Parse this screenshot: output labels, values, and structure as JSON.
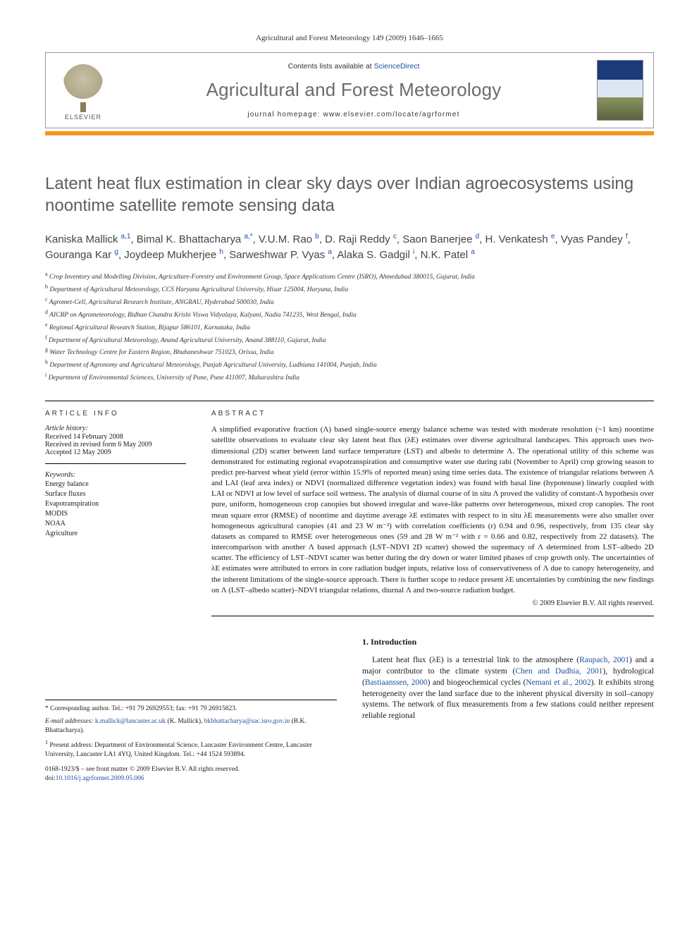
{
  "running_head": "Agricultural and Forest Meteorology 149 (2009) 1646–1665",
  "masthead": {
    "contents_prefix": "Contents lists available at ",
    "contents_link": "ScienceDirect",
    "journal": "Agricultural and Forest Meteorology",
    "homepage_prefix": "journal homepage: ",
    "homepage_url": "www.elsevier.com/locate/agrformet",
    "publisher": "ELSEVIER"
  },
  "title": "Latent heat flux estimation in clear sky days over Indian agroecosystems using noontime satellite remote sensing data",
  "authors_html": "Kaniska Mallick <sup>a,1</sup>, Bimal K. Bhattacharya <sup>a,*</sup>, V.U.M. Rao <sup>b</sup>, D. Raji Reddy <sup>c</sup>, Saon Banerjee <sup>d</sup>, H. Venkatesh <sup>e</sup>, Vyas Pandey <sup>f</sup>, Gouranga Kar <sup>g</sup>, Joydeep Mukherjee <sup>h</sup>, Sarweshwar P. Vyas <sup>a</sup>, Alaka S. Gadgil <sup>i</sup>, N.K. Patel <sup>a</sup>",
  "affiliations": [
    {
      "sup": "a",
      "text": "Crop Inventory and Modelling Division, Agriculture-Forestry and Environment Group, Space Applications Centre (ISRO), Ahmedabad 380015, Gujarat, India"
    },
    {
      "sup": "b",
      "text": "Department of Agricultural Meteorology, CCS Haryana Agricultural University, Hisar 125004, Haryana, India"
    },
    {
      "sup": "c",
      "text": "Agromet-Cell, Agricultural Research Institute, ANGRAU, Hyderabad 500030, India"
    },
    {
      "sup": "d",
      "text": "AICRP on Agrometeorology, Bidhan Chandra Krishi Viswa Vidyalaya, Kalyani, Nadia 741235, West Bengal, India"
    },
    {
      "sup": "e",
      "text": "Regional Agricultural Research Station, Bijapur 586101, Karnataka, India"
    },
    {
      "sup": "f",
      "text": "Department of Agricultural Meteorology, Anand Agricultural University, Anand 388110, Gujarat, India"
    },
    {
      "sup": "g",
      "text": "Water Technology Centre for Eastern Region, Bhubaneshwar 751023, Orissa, India"
    },
    {
      "sup": "h",
      "text": "Department of Agronomy and Agricultural Meteorology, Punjab Agricultural University, Ludhiana 141004, Punjab, India"
    },
    {
      "sup": "i",
      "text": "Department of Environmental Sciences, University of Pune, Pune 411007, Maharashtra India"
    }
  ],
  "article_info_head": "ARTICLE INFO",
  "abstract_head": "ABSTRACT",
  "history": {
    "label": "Article history:",
    "received": "Received 14 February 2008",
    "revised": "Received in revised form 6 May 2009",
    "accepted": "Accepted 12 May 2009"
  },
  "keywords": {
    "label": "Keywords:",
    "items": [
      "Energy balance",
      "Surface fluxes",
      "Evapotranspiration",
      "MODIS",
      "NOAA",
      "Agriculture"
    ]
  },
  "abstract": "A simplified evaporative fraction (Λ) based single-source energy balance scheme was tested with moderate resolution (~1 km) noontime satellite observations to evaluate clear sky latent heat flux (λE) estimates over diverse agricultural landscapes. This approach uses two-dimensional (2D) scatter between land surface temperature (LST) and albedo to determine Λ. The operational utility of this scheme was demonstrated for estimating regional evapotranspiration and consumptive water use during rabi (November to April) crop growing season to predict pre-harvest wheat yield (error within 15.9% of reported mean) using time series data. The existence of triangular relations between Λ and LAI (leaf area index) or NDVI (normalized difference vegetation index) was found with basal line (hypotenuse) linearly coupled with LAI or NDVI at low level of surface soil wetness. The analysis of diurnal course of in situ Λ proved the validity of constant-Λ hypothesis over pure, uniform, homogeneous crop canopies but showed irregular and wave-like patterns over heterogeneous, mixed crop canopies. The root mean square error (RMSE) of noontime and daytime average λE estimates with respect to in situ λE measurements were also smaller over homogeneous agricultural canopies (41 and 23 W m⁻²) with correlation coefficients (r) 0.94 and 0.96, respectively, from 135 clear sky datasets as compared to RMSE over heterogeneous ones (59 and 28 W m⁻² with r = 0.66 and 0.82, respectively from 22 datasets). The intercomparison with another Λ based approach (LST–NDVI 2D scatter) showed the supremacy of Λ determined from LST–albedo 2D scatter. The efficiency of LST–NDVI scatter was better during the dry down or water limited phases of crop growth only. The uncertainties of λE estimates were attributed to errors in core radiation budget inputs, relative loss of conservativeness of Λ due to canopy heterogeneity, and the inherent limitations of the single-source approach. There is further scope to reduce present λE uncertainties by combining the new findings on Λ (LST–albedo scatter)–NDVI triangular relations, diurnal Λ and two-source radiation budget.",
  "copyright": "© 2009 Elsevier B.V. All rights reserved.",
  "intro_head": "1. Introduction",
  "intro_para": "Latent heat flux (λE) is a terrestrial link to the atmosphere (Raupach, 2001) and a major contributor to the climate system (Chen and Dudhia, 2001), hydrological (Bastiaanssen, 2000) and biogeochemical cycles (Nemani et al., 2002). It exhibits strong heterogeneity over the land surface due to the inherent physical diversity in soil–canopy systems. The network of flux measurements from a few stations could neither represent reliable regional",
  "footnotes": {
    "corr_label": "* Corresponding author. Tel.: +91 79 26929553; fax: +91 79 26915823.",
    "email_label": "E-mail addresses: ",
    "email1": "k.mallick@lancaster.ac.uk",
    "email1_who": " (K. Mallick), ",
    "email2": "bkbhattacharya@sac.isro.gov.in",
    "email2_who": " (B.K. Bhattacharya).",
    "present_sup": "1",
    "present": " Present address: Department of Environmental Science, Lancaster Environment Centre, Lancaster University, Lancaster LA1 4YQ, United Kingdom. Tel.: +44 1524 593894."
  },
  "doi_block": {
    "line1": "0168-1923/$ – see front matter © 2009 Elsevier B.V. All rights reserved.",
    "line2_prefix": "doi:",
    "doi": "10.1016/j.agrformet.2009.05.006"
  },
  "colors": {
    "orange": "#f7941e",
    "link": "#1a4f9c",
    "grey_title": "#5e5e5e",
    "grey_journal": "#6b6b6b"
  }
}
